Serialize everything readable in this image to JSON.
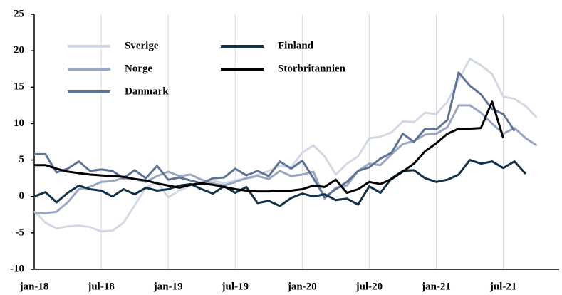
{
  "chart_data": {
    "type": "line",
    "categories": [
      "jan-18",
      null,
      null,
      null,
      null,
      null,
      "jul-18",
      null,
      null,
      null,
      null,
      null,
      "jan-19",
      null,
      null,
      null,
      null,
      null,
      "jul-19",
      null,
      null,
      null,
      null,
      null,
      "jan-20",
      null,
      null,
      null,
      null,
      null,
      "jul-20",
      null,
      null,
      null,
      null,
      null,
      "jan-21",
      null,
      null,
      null,
      null,
      null,
      "jul-21",
      null,
      null,
      null,
      null,
      null
    ],
    "series": [
      {
        "name": "Sverige",
        "color": "#d3d9e4",
        "values": [
          -2,
          -3.6,
          -4.4,
          -4.1,
          -4.0,
          -4.2,
          -4.8,
          -4.7,
          -3.6,
          -1.2,
          1.2,
          2.0,
          -0.1,
          0.8,
          1.5,
          2.0,
          2.2,
          1.8,
          2.2,
          2.5,
          3.0,
          3.5,
          4.2,
          4.0,
          6.0,
          7.0,
          5.5,
          3.0,
          4.5,
          5.5,
          8.0,
          8.2,
          8.8,
          10.3,
          10.2,
          11.5,
          11.3,
          13.0,
          16.0,
          18.9,
          18.0,
          16.8,
          13.7,
          13.4,
          12.4,
          10.8,
          null,
          null
        ]
      },
      {
        "name": "Norge",
        "color": "#9aa7c0",
        "values": [
          -2.2,
          -2.3,
          -2.1,
          -0.8,
          1.0,
          1.3,
          2.0,
          2.1,
          2.5,
          2.4,
          2.0,
          2.8,
          3.4,
          2.8,
          3.0,
          2.3,
          1.8,
          1.5,
          2.0,
          2.5,
          2.8,
          2.4,
          3.5,
          2.8,
          3.0,
          3.4,
          -0.3,
          1.2,
          1.5,
          3.5,
          4.5,
          4.3,
          5.8,
          7.2,
          7.6,
          8.5,
          8.6,
          9.5,
          12.5,
          12.5,
          11.5,
          10.0,
          8.6,
          9.4,
          8.0,
          7.0,
          null,
          null
        ]
      },
      {
        "name": "Danmark",
        "color": "#5f7396",
        "values": [
          5.8,
          5.8,
          3.3,
          3.8,
          4.8,
          3.5,
          3.7,
          3.5,
          2.5,
          3.6,
          2.5,
          4.2,
          2.3,
          2.6,
          2.2,
          1.8,
          2.5,
          2.6,
          3.8,
          2.9,
          3.5,
          2.8,
          4.8,
          3.8,
          4.9,
          2.5,
          -0.1,
          1.0,
          2.0,
          3.5,
          4.0,
          5.2,
          6.0,
          8.6,
          7.5,
          9.3,
          9.2,
          10.5,
          17.0,
          15.2,
          14.0,
          12.0,
          11.3,
          9.0,
          null,
          null,
          null,
          null
        ]
      },
      {
        "name": "Finland",
        "color": "#12324a",
        "values": [
          0.0,
          0.6,
          -0.8,
          0.5,
          1.5,
          1.0,
          0.8,
          0.0,
          1.0,
          0.3,
          1.2,
          0.8,
          1.0,
          1.5,
          1.7,
          1.0,
          0.4,
          1.4,
          0.5,
          1.3,
          -0.9,
          -0.6,
          -1.3,
          -0.2,
          0.4,
          0.0,
          0.3,
          -0.5,
          -0.3,
          -1.1,
          1.4,
          0.5,
          2.5,
          3.5,
          3.6,
          2.5,
          2.0,
          2.3,
          3.0,
          5.0,
          4.5,
          4.8,
          3.9,
          4.8,
          3.1,
          null,
          null,
          null
        ]
      },
      {
        "name": "Storbritannien",
        "color": "#000000",
        "values": [
          4.3,
          4.3,
          3.8,
          3.4,
          3.2,
          3.0,
          2.9,
          2.8,
          2.7,
          2.4,
          2.2,
          1.8,
          1.5,
          1.2,
          1.6,
          1.8,
          1.6,
          1.3,
          1.0,
          0.8,
          0.7,
          0.7,
          0.8,
          0.8,
          1.0,
          1.5,
          1.3,
          2.3,
          0.5,
          1.0,
          2.0,
          1.7,
          2.4,
          3.4,
          4.5,
          6.2,
          7.3,
          8.6,
          9.3,
          9.3,
          9.4,
          13.0,
          8.0,
          null,
          null,
          null,
          null,
          null
        ]
      }
    ],
    "ylim": [
      -10,
      25
    ],
    "yticks": [
      -10,
      -5,
      0,
      5,
      10,
      15,
      20,
      25
    ],
    "grid": true
  }
}
